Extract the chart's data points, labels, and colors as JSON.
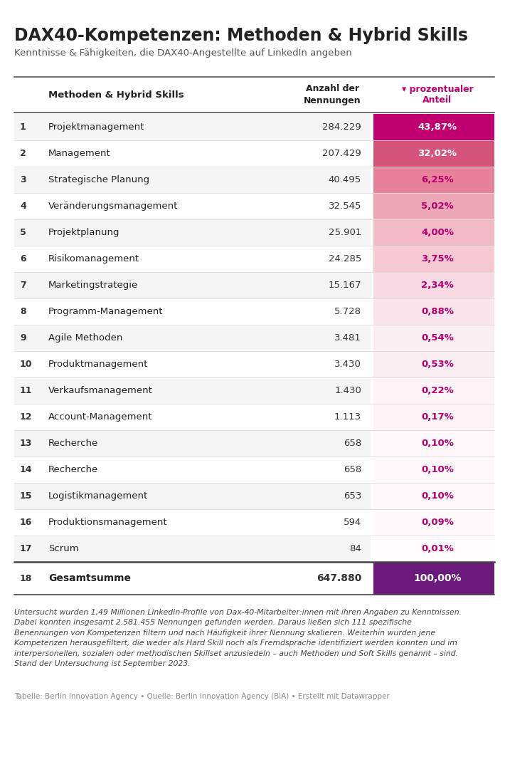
{
  "title": "DAX40-Kompetenzen: Methoden & Hybrid Skills",
  "subtitle": "Kenntnisse & Fähigkeiten, die DAX40-Angestellte auf LinkedIn angeben",
  "rows": [
    {
      "rank": "1",
      "skill": "Projektmanagement",
      "count": "284.229",
      "pct": "43,87%",
      "pct_val": 43.87
    },
    {
      "rank": "2",
      "skill": "Management",
      "count": "207.429",
      "pct": "32,02%",
      "pct_val": 32.02
    },
    {
      "rank": "3",
      "skill": "Strategische Planung",
      "count": "40.495",
      "pct": "6,25%",
      "pct_val": 6.25
    },
    {
      "rank": "4",
      "skill": "Veränderungsmanagement",
      "count": "32.545",
      "pct": "5,02%",
      "pct_val": 5.02
    },
    {
      "rank": "5",
      "skill": "Projektplanung",
      "count": "25.901",
      "pct": "4,00%",
      "pct_val": 4.0
    },
    {
      "rank": "6",
      "skill": "Risikomanagement",
      "count": "24.285",
      "pct": "3,75%",
      "pct_val": 3.75
    },
    {
      "rank": "7",
      "skill": "Marketingstrategie",
      "count": "15.167",
      "pct": "2,34%",
      "pct_val": 2.34
    },
    {
      "rank": "8",
      "skill": "Programm-Management",
      "count": "5.728",
      "pct": "0,88%",
      "pct_val": 0.88
    },
    {
      "rank": "9",
      "skill": "Agile Methoden",
      "count": "3.481",
      "pct": "0,54%",
      "pct_val": 0.54
    },
    {
      "rank": "10",
      "skill": "Produktmanagement",
      "count": "3.430",
      "pct": "0,53%",
      "pct_val": 0.53
    },
    {
      "rank": "11",
      "skill": "Verkaufsmanagement",
      "count": "1.430",
      "pct": "0,22%",
      "pct_val": 0.22
    },
    {
      "rank": "12",
      "skill": "Account-Management",
      "count": "1.113",
      "pct": "0,17%",
      "pct_val": 0.17
    },
    {
      "rank": "13",
      "skill": "Recherche",
      "count": "658",
      "pct": "0,10%",
      "pct_val": 0.1
    },
    {
      "rank": "14",
      "skill": "Recherche",
      "count": "658",
      "pct": "0,10%",
      "pct_val": 0.1
    },
    {
      "rank": "15",
      "skill": "Logistikmanagement",
      "count": "653",
      "pct": "0,10%",
      "pct_val": 0.1
    },
    {
      "rank": "16",
      "skill": "Produktionsmanagement",
      "count": "594",
      "pct": "0,09%",
      "pct_val": 0.09
    },
    {
      "rank": "17",
      "skill": "Scrum",
      "count": "84",
      "pct": "0,01%",
      "pct_val": 0.01
    }
  ],
  "total_row": {
    "rank": "18",
    "skill": "Gesamtsumme",
    "count": "647.880",
    "pct": "100,00%"
  },
  "footnote": "Untersucht wurden 1,49 Millionen LinkedIn-Profile von Dax-40-Mitarbeiter:innen mit ihren Angaben zu Kenntnissen.\nDabei konnten insgesamt 2.581.455 Nennungen gefunden werden. Daraus ließen sich 111 spezifische\nBenennungen von Kompetenzen filtern und nach Häufigkeit ihrer Nennung skalieren. Weiterhin wurden jene\nKompetenzen herausgefiltert, die weder als Hard Skill noch als Fremdsprache identifiziert werden konnten und im\ninterpersonellen, sozialen oder methodischen Skillset anzusiedeln – auch Methoden und Soft Skills genannt – sind.\nStand der Untersuchung ist September 2023.",
  "source": "Tabelle: Berlin Innovation Agency • Quelle: Berlin Innovation Agency (BIA) • Erstellt mit Datawrapper",
  "color_row1": "#c0006e",
  "color_row2": "#d4547a",
  "color_row3": "#e8829a",
  "color_row4": "#eda8b8",
  "color_row5": "#f2bac6",
  "color_row6": "#f5c8d2",
  "color_row7": "#f8d8e2",
  "color_row8": "#fae5ec",
  "color_row9": "#fbeef3",
  "color_row10": "#fbeef3",
  "color_row11": "#fdf4f7",
  "color_row12": "#fdf4f7",
  "color_row13": "#fef8fa",
  "color_row14": "#fef8fa",
  "color_row15": "#fef8fa",
  "color_row16": "#fff9fb",
  "color_row17": "#fffcfd",
  "color_total": "#6a1a7a",
  "bg_color": "#ffffff",
  "text_dark": "#222222",
  "text_mid": "#444444",
  "text_light": "#888888"
}
